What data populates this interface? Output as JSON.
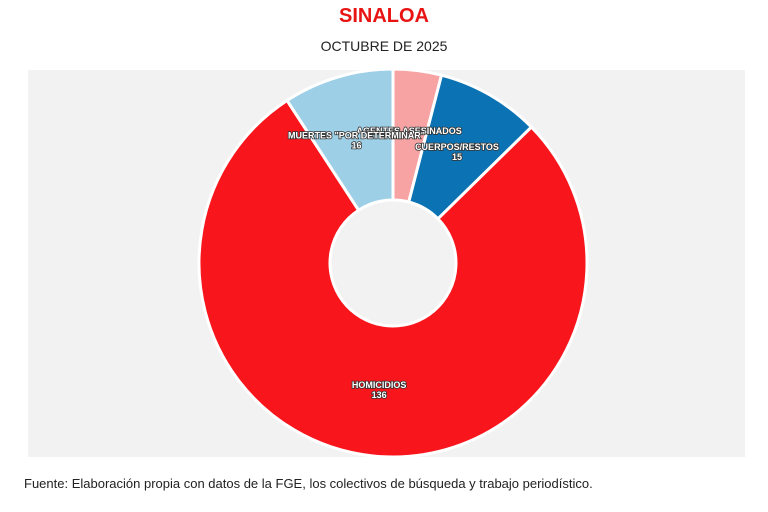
{
  "chart_data": {
    "type": "donut",
    "title": "SINALOA",
    "subtitle": "OCTUBRE DE 2025",
    "categories": [
      "AGENTES ASESINADOS",
      "CUERPOS/RESTOS",
      "HOMICIDIOS",
      "MUERTES \"POR DETERMINAR\""
    ],
    "values": [
      7,
      15,
      136,
      16
    ],
    "colors": [
      "#f7a3a3",
      "#0b72b3",
      "#f8151c",
      "#9dcfe6"
    ],
    "source": "Fuente: Elaboración propia con datos de la FGE, los colectivos de búsqueda y trabajo periodístico."
  }
}
